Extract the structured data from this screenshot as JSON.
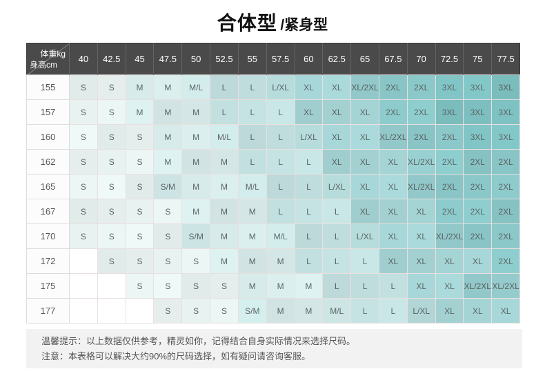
{
  "title": {
    "main": "合体型",
    "sub": "/紧身型"
  },
  "table": {
    "corner": {
      "top_right": "体重kg",
      "bottom_left": "身高cm"
    },
    "weights": [
      "40",
      "42.5",
      "45",
      "47.5",
      "50",
      "52.5",
      "55",
      "57.5",
      "60",
      "62.5",
      "65",
      "67.5",
      "70",
      "72.5",
      "75",
      "77.5"
    ],
    "rows": [
      {
        "height": "155",
        "cells": [
          "S",
          "S",
          "M",
          "M",
          "M/L",
          "L",
          "L",
          "L/XL",
          "XL",
          "XL",
          "XL/2XL",
          "2XL",
          "2XL",
          "3XL",
          "3XL",
          "3XL"
        ]
      },
      {
        "height": "157",
        "cells": [
          "S",
          "S",
          "M",
          "M",
          "M",
          "L",
          "L",
          "L",
          "XL",
          "XL",
          "XL",
          "2XL",
          "2XL",
          "3XL",
          "3XL",
          "3XL"
        ]
      },
      {
        "height": "160",
        "cells": [
          "S",
          "S",
          "S",
          "M",
          "M",
          "M/L",
          "L",
          "L",
          "L/XL",
          "XL",
          "XL",
          "XL/2XL",
          "2XL",
          "2XL",
          "3XL",
          "3XL"
        ]
      },
      {
        "height": "162",
        "cells": [
          "S",
          "S",
          "S",
          "M",
          "M",
          "M",
          "L",
          "L",
          "L",
          "XL",
          "XL",
          "XL",
          "XL/2XL",
          "2XL",
          "2XL",
          "2XL"
        ]
      },
      {
        "height": "165",
        "cells": [
          "S",
          "S",
          "S",
          "S/M",
          "M",
          "M",
          "M/L",
          "L",
          "L",
          "L/XL",
          "XL",
          "XL",
          "XL/2XL",
          "2XL",
          "2XL",
          "2XL"
        ]
      },
      {
        "height": "167",
        "cells": [
          "S",
          "S",
          "S",
          "S",
          "M",
          "M",
          "M",
          "L",
          "L",
          "L",
          "XL",
          "XL",
          "XL",
          "2XL",
          "2XL",
          "2XL"
        ]
      },
      {
        "height": "170",
        "cells": [
          "S",
          "S",
          "S",
          "S",
          "S/M",
          "M",
          "M",
          "M/L",
          "L",
          "L",
          "L/XL",
          "XL",
          "XL",
          "XL/2XL",
          "2XL",
          "2XL"
        ]
      },
      {
        "height": "172",
        "cells": [
          "",
          "S",
          "S",
          "S",
          "S",
          "M",
          "M",
          "M",
          "L",
          "L",
          "L",
          "XL",
          "XL",
          "XL",
          "XL",
          "2XL"
        ]
      },
      {
        "height": "175",
        "cells": [
          "",
          "",
          "S",
          "S",
          "S",
          "S",
          "M",
          "M",
          "M",
          "L",
          "L",
          "L",
          "XL",
          "XL",
          "XL/2XL",
          "XL/2XL"
        ]
      },
      {
        "height": "177",
        "cells": [
          "",
          "",
          "",
          "S",
          "S",
          "S",
          "S/M",
          "M",
          "M",
          "M/L",
          "L",
          "L",
          "L/XL",
          "XL",
          "XL",
          "XL"
        ]
      }
    ],
    "size_colors": {
      "S": "#e8f2f1",
      "S/M": "#cfe7e7",
      "M": "#d7ebea",
      "M/L": "#cde5e5",
      "L": "#c3e0e0",
      "L/XL": "#b7dcdc",
      "XL": "#a5d4d5",
      "XL/2XL": "#97cecf",
      "2XL": "#8bc8c9",
      "3XL": "#7fc2c3"
    },
    "empty_color": "#ffffff",
    "header_bg": "#4a4a4a",
    "header_text": "#ffffff"
  },
  "footer": {
    "line1": "温馨提示：以上数据仅供参考，精灵如你，记得结合自身实际情况来选择尺码。",
    "line2": "注意：本表格可以解决大约90%的尺码选择，如有疑问请咨询客服。"
  }
}
